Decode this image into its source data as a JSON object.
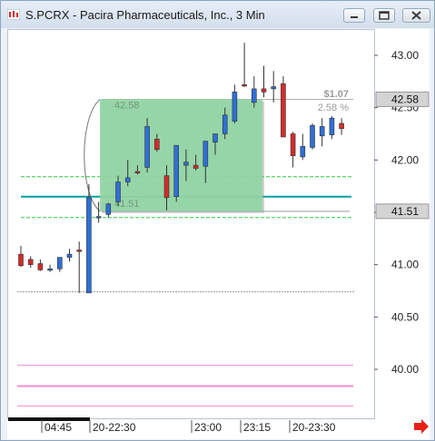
{
  "window": {
    "title": "S.PCRX - Pacira Pharmaceuticals, Inc., 3 Min",
    "icon": "chart-app-icon",
    "buttons": [
      "minimize",
      "maximize",
      "close"
    ]
  },
  "price_axis": {
    "ticks": [
      "43.00",
      "42.50",
      "42.00",
      "41.50",
      "41.00",
      "40.50",
      "40.00"
    ],
    "tag_upper": "42.58",
    "tag_lower": "41.51"
  },
  "time_axis": {
    "labels": [
      "04:45",
      "20-22:30",
      "23:00",
      "23:15",
      "20-23:30"
    ]
  },
  "measure_box": {
    "top_label": "42.58",
    "bottom_label": "41.51",
    "change": "$1.07",
    "change_pct": "2.58 %"
  },
  "colors": {
    "up": "#2f6fd6",
    "down": "#d42b2b",
    "measure_fill": "#8fd5a3",
    "green_lines": "#2ecc40",
    "teal_line": "#00a0a8",
    "pink_lines": "#f08cd0",
    "scroll_arrow": "#e8201a"
  },
  "chart_data": {
    "type": "candlestick",
    "yaxis": {
      "min": 39.6,
      "max": 43.3,
      "ticks": [
        43.0,
        42.5,
        42.0,
        41.5,
        41.0,
        40.5,
        40.0
      ]
    },
    "candles": [
      {
        "o": 41.1,
        "h": 41.18,
        "l": 40.98,
        "c": 40.99
      },
      {
        "o": 41.05,
        "h": 41.08,
        "l": 40.97,
        "c": 41.0
      },
      {
        "o": 41.01,
        "h": 41.05,
        "l": 40.94,
        "c": 40.95
      },
      {
        "o": 40.96,
        "h": 41.0,
        "l": 40.93,
        "c": 40.96
      },
      {
        "o": 40.96,
        "h": 41.05,
        "l": 40.93,
        "c": 41.07
      },
      {
        "o": 41.07,
        "h": 41.15,
        "l": 41.03,
        "c": 41.1
      },
      {
        "o": 41.14,
        "h": 41.22,
        "l": 40.73,
        "c": 41.13
      },
      {
        "o": 40.73,
        "h": 41.77,
        "l": 40.73,
        "c": 41.64
      },
      {
        "o": 41.45,
        "h": 41.6,
        "l": 41.4,
        "c": 41.46
      },
      {
        "o": 41.48,
        "h": 41.59,
        "l": 41.45,
        "c": 41.58
      },
      {
        "o": 41.6,
        "h": 41.85,
        "l": 41.56,
        "c": 41.79
      },
      {
        "o": 41.79,
        "h": 42.0,
        "l": 41.75,
        "c": 41.83
      },
      {
        "o": 41.89,
        "h": 41.95,
        "l": 41.86,
        "c": 41.88
      },
      {
        "o": 41.93,
        "h": 42.4,
        "l": 41.88,
        "c": 42.32
      },
      {
        "o": 42.2,
        "h": 42.25,
        "l": 42.08,
        "c": 42.1
      },
      {
        "o": 41.85,
        "h": 41.95,
        "l": 41.52,
        "c": 41.64
      },
      {
        "o": 41.65,
        "h": 42.14,
        "l": 41.6,
        "c": 42.14
      },
      {
        "o": 41.95,
        "h": 42.1,
        "l": 41.8,
        "c": 41.98
      },
      {
        "o": 41.95,
        "h": 42.05,
        "l": 41.9,
        "c": 41.92
      },
      {
        "o": 41.94,
        "h": 42.15,
        "l": 41.78,
        "c": 42.18
      },
      {
        "o": 42.17,
        "h": 42.25,
        "l": 42.05,
        "c": 42.25
      },
      {
        "o": 42.25,
        "h": 42.5,
        "l": 42.2,
        "c": 42.43
      },
      {
        "o": 42.37,
        "h": 42.72,
        "l": 42.35,
        "c": 42.65
      },
      {
        "o": 42.72,
        "h": 43.12,
        "l": 42.7,
        "c": 42.71
      },
      {
        "o": 42.55,
        "h": 42.8,
        "l": 42.5,
        "c": 42.68
      },
      {
        "o": 42.68,
        "h": 42.9,
        "l": 42.6,
        "c": 42.65
      },
      {
        "o": 42.68,
        "h": 42.85,
        "l": 42.55,
        "c": 42.7
      },
      {
        "o": 42.73,
        "h": 42.8,
        "l": 42.22,
        "c": 42.22
      },
      {
        "o": 42.25,
        "h": 42.27,
        "l": 41.93,
        "c": 42.04
      },
      {
        "o": 42.03,
        "h": 42.25,
        "l": 42.0,
        "c": 42.13
      },
      {
        "o": 42.12,
        "h": 42.35,
        "l": 42.1,
        "c": 42.33
      },
      {
        "o": 42.23,
        "h": 42.4,
        "l": 42.13,
        "c": 42.32
      },
      {
        "o": 42.24,
        "h": 42.42,
        "l": 42.2,
        "c": 42.4
      },
      {
        "o": 42.35,
        "h": 42.4,
        "l": 42.24,
        "c": 42.3
      }
    ],
    "levels": {
      "green": [
        41.84,
        41.45
      ],
      "teal": 41.65,
      "gray": [
        41.51,
        42.58,
        40.74
      ],
      "pink": [
        40.04,
        39.84,
        39.65
      ]
    },
    "measure": {
      "top": 42.58,
      "bottom": 41.51,
      "from_index": 8,
      "to_index": 25
    }
  }
}
